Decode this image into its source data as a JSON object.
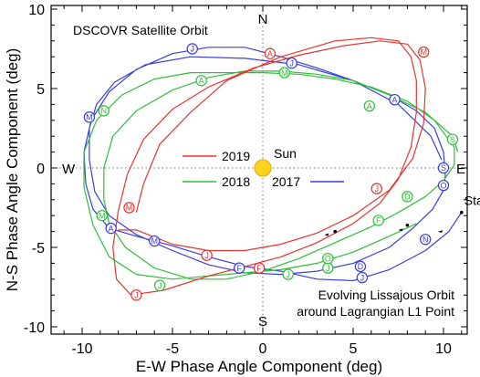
{
  "chart_data": {
    "type": "line",
    "title": "DSCOVR Satellite Orbit",
    "xlabel": "E-W Phase Angle Component (deg)",
    "ylabel": "N-S Phase Angle Component (deg)",
    "xlim": [
      -12,
      12
    ],
    "ylim": [
      -10.3,
      10.3
    ],
    "xticks": [
      -10,
      -5,
      0,
      5,
      10
    ],
    "yticks": [
      -10,
      -5,
      0,
      5,
      10
    ],
    "grid": false,
    "center_lines": "dotted",
    "compass": {
      "north": "N",
      "south": "S",
      "west": "W",
      "east": "E"
    },
    "sun": {
      "label": "Sun",
      "x": 0,
      "y": 0,
      "color": "#ffd21f"
    },
    "annotation_lines": [
      "Evolving Lissajous Orbit",
      "around Lagrangian L1 Point"
    ],
    "start_label": "Start",
    "start_point": {
      "x": 11.0,
      "y": -2.8
    },
    "legend": [
      {
        "name": "2019",
        "color": "#e8342f"
      },
      {
        "name": "2018",
        "color": "#2fbf3a"
      },
      {
        "name": "2017",
        "color": "#3a3fe0"
      }
    ],
    "series": [
      {
        "name": "2017",
        "color": "#3a3fe0",
        "path": [
          [
            11.0,
            -2.8
          ],
          [
            10.3,
            -4.0
          ],
          [
            9.0,
            -5.2
          ],
          [
            7.0,
            -6.4
          ],
          [
            5.0,
            -7.1
          ],
          [
            3.0,
            -7.0
          ],
          [
            1.0,
            -6.5
          ],
          [
            -1.0,
            -6.2
          ],
          [
            -3.0,
            -5.6
          ],
          [
            -5.0,
            -4.9
          ],
          [
            -7.0,
            -4.3
          ],
          [
            -8.5,
            -3.8
          ],
          [
            -9.4,
            -2.6
          ],
          [
            -9.8,
            -1.0
          ],
          [
            -9.9,
            1.0
          ],
          [
            -9.5,
            3.0
          ],
          [
            -8.5,
            4.8
          ],
          [
            -7.0,
            6.2
          ],
          [
            -5.0,
            7.2
          ],
          [
            -3.0,
            7.6
          ],
          [
            -1.0,
            7.6
          ],
          [
            1.0,
            7.0
          ],
          [
            3.0,
            6.3
          ],
          [
            5.0,
            5.5
          ],
          [
            7.0,
            4.6
          ],
          [
            8.5,
            3.6
          ],
          [
            9.5,
            2.5
          ],
          [
            10.0,
            1.0
          ],
          [
            10.1,
            -0.5
          ],
          [
            10.0,
            -1.4
          ],
          [
            9.4,
            -2.6
          ],
          [
            8.3,
            -3.8
          ],
          [
            7.0,
            -5.0
          ],
          [
            5.0,
            -6.0
          ],
          [
            3.0,
            -6.5
          ],
          [
            1.0,
            -6.7
          ],
          [
            -1.0,
            -6.6
          ],
          [
            -3.0,
            -6.1
          ],
          [
            -5.0,
            -5.2
          ],
          [
            -7.0,
            -4.2
          ],
          [
            -8.5,
            -3.0
          ],
          [
            -9.3,
            -1.5
          ],
          [
            -9.6,
            0.5
          ],
          [
            -9.6,
            2.5
          ],
          [
            -9.2,
            4.0
          ],
          [
            -8.2,
            5.4
          ],
          [
            -6.5,
            6.5
          ],
          [
            -4.0,
            7.0
          ],
          [
            -1.0,
            6.9
          ],
          [
            2.0,
            6.5
          ],
          [
            5.0,
            5.5
          ],
          [
            7.5,
            4.0
          ],
          [
            9.3,
            2.0
          ],
          [
            9.9,
            0.5
          ]
        ],
        "markers": [
          {
            "label": "J",
            "x": 5.5,
            "y": -6.9
          },
          {
            "label": "F",
            "x": -1.3,
            "y": -6.3
          },
          {
            "label": "M",
            "x": -6.0,
            "y": -4.6
          },
          {
            "label": "A",
            "x": -8.4,
            "y": -3.8
          },
          {
            "label": "M",
            "x": -9.6,
            "y": 3.2
          },
          {
            "label": "J",
            "x": -3.9,
            "y": 7.5
          },
          {
            "label": "J",
            "x": 1.6,
            "y": 6.6
          },
          {
            "label": "A",
            "x": 7.3,
            "y": 4.3
          },
          {
            "label": "S",
            "x": 10.0,
            "y": 0.0
          },
          {
            "label": "O",
            "x": 10.0,
            "y": -1.1
          },
          {
            "label": "N",
            "x": 9.0,
            "y": -4.5
          },
          {
            "label": "D",
            "x": 5.4,
            "y": -6.2
          }
        ]
      },
      {
        "name": "2018",
        "color": "#2fbf3a",
        "path": [
          [
            8.5,
            -3.5
          ],
          [
            7.0,
            -4.3
          ],
          [
            5.0,
            -5.3
          ],
          [
            3.0,
            -6.0
          ],
          [
            1.0,
            -6.4
          ],
          [
            -1.0,
            -6.6
          ],
          [
            -3.0,
            -6.8
          ],
          [
            -5.0,
            -7.0
          ],
          [
            -7.0,
            -6.7
          ],
          [
            -8.5,
            -5.6
          ],
          [
            -9.4,
            -3.6
          ],
          [
            -9.9,
            -1.2
          ],
          [
            -9.9,
            1.0
          ],
          [
            -9.2,
            3.0
          ],
          [
            -7.8,
            4.6
          ],
          [
            -6.0,
            5.6
          ],
          [
            -4.0,
            6.0
          ],
          [
            -2.0,
            6.0
          ],
          [
            0.0,
            6.0
          ],
          [
            2.0,
            5.9
          ],
          [
            4.0,
            5.6
          ],
          [
            6.0,
            5.1
          ],
          [
            8.0,
            4.2
          ],
          [
            9.5,
            3.0
          ],
          [
            10.6,
            1.3
          ],
          [
            10.6,
            0.2
          ],
          [
            10.0,
            -0.8
          ],
          [
            9.0,
            -1.8
          ],
          [
            7.5,
            -2.8
          ],
          [
            6.0,
            -3.7
          ],
          [
            4.0,
            -4.7
          ],
          [
            2.0,
            -5.7
          ],
          [
            0.0,
            -6.5
          ],
          [
            -2.0,
            -7.0
          ],
          [
            -4.0,
            -7.0
          ],
          [
            -6.0,
            -6.3
          ],
          [
            -7.6,
            -5.0
          ],
          [
            -8.5,
            -3.5
          ],
          [
            -8.8,
            -2.0
          ],
          [
            -8.8,
            0.0
          ],
          [
            -8.3,
            2.0
          ],
          [
            -7.0,
            3.6
          ],
          [
            -5.0,
            4.9
          ],
          [
            -3.0,
            5.7
          ],
          [
            -1.0,
            6.1
          ],
          [
            1.0,
            6.1
          ],
          [
            3.0,
            5.9
          ],
          [
            5.0,
            5.5
          ],
          [
            7.0,
            4.6
          ],
          [
            9.0,
            3.5
          ],
          [
            10.5,
            2.0
          ],
          [
            10.8,
            1.0
          ]
        ],
        "markers": [
          {
            "label": "J",
            "x": 3.6,
            "y": -6.3
          },
          {
            "label": "F",
            "x": 6.4,
            "y": -3.3
          },
          {
            "label": "M",
            "x": 1.2,
            "y": 6.0
          },
          {
            "label": "A",
            "x": -3.4,
            "y": 5.5
          },
          {
            "label": "M",
            "x": -8.9,
            "y": -3.0
          },
          {
            "label": "J",
            "x": -5.7,
            "y": -7.4
          },
          {
            "label": "J",
            "x": 1.4,
            "y": -6.7
          },
          {
            "label": "A",
            "x": 5.9,
            "y": 3.9
          },
          {
            "label": "S",
            "x": 10.5,
            "y": 1.8
          },
          {
            "label": "O",
            "x": 3.6,
            "y": -5.7
          },
          {
            "label": "N",
            "x": -8.8,
            "y": 3.6
          },
          {
            "label": "D",
            "x": 8.0,
            "y": -1.8
          }
        ]
      },
      {
        "name": "2019",
        "color": "#e8342f",
        "path": [
          [
            -8.0,
            -3.9
          ],
          [
            -7.0,
            -3.9
          ],
          [
            -5.0,
            -4.8
          ],
          [
            -3.0,
            -5.2
          ],
          [
            -1.0,
            -5.2
          ],
          [
            1.0,
            -4.8
          ],
          [
            3.0,
            -4.1
          ],
          [
            5.0,
            -3.0
          ],
          [
            7.0,
            -1.4
          ],
          [
            8.3,
            0.6
          ],
          [
            8.9,
            2.8
          ],
          [
            9.0,
            5.0
          ],
          [
            8.7,
            6.8
          ],
          [
            8.0,
            7.8
          ],
          [
            6.5,
            8.0
          ],
          [
            4.5,
            7.7
          ],
          [
            2.0,
            7.1
          ],
          [
            -0.5,
            6.3
          ],
          [
            -3.0,
            5.1
          ],
          [
            -5.0,
            3.7
          ],
          [
            -6.6,
            1.8
          ],
          [
            -7.5,
            -0.4
          ],
          [
            -8.0,
            -2.7
          ],
          [
            -8.3,
            -5.0
          ],
          [
            -8.1,
            -7.0
          ],
          [
            -7.3,
            -8.0
          ],
          [
            -5.5,
            -7.7
          ],
          [
            -3.0,
            -6.8
          ],
          [
            -1.0,
            -6.2
          ],
          [
            1.0,
            -5.6
          ],
          [
            3.0,
            -4.7
          ],
          [
            5.0,
            -3.5
          ],
          [
            6.5,
            -2.2
          ],
          [
            7.5,
            -0.7
          ],
          [
            8.2,
            1.3
          ],
          [
            8.5,
            3.5
          ],
          [
            8.5,
            5.5
          ],
          [
            8.2,
            7.0
          ],
          [
            7.5,
            8.0
          ],
          [
            6.0,
            8.2
          ],
          [
            4.0,
            8.0
          ],
          [
            1.0,
            7.0
          ],
          [
            -2.0,
            5.5
          ],
          [
            -4.0,
            3.5
          ],
          [
            -5.7,
            1.5
          ],
          [
            -6.6,
            -1.0
          ],
          [
            -7.0,
            -2.8
          ]
        ],
        "markers": [
          {
            "label": "J",
            "x": -3.1,
            "y": -5.5
          },
          {
            "label": "F",
            "x": -0.2,
            "y": -6.3
          },
          {
            "label": "M",
            "x": -7.4,
            "y": -2.5
          },
          {
            "label": "A",
            "x": 0.4,
            "y": 7.2
          },
          {
            "label": "M",
            "x": 8.9,
            "y": 7.3
          },
          {
            "label": "J",
            "x": 6.3,
            "y": -1.3
          },
          {
            "label": "J",
            "x": -7.0,
            "y": -8.0
          }
        ]
      }
    ]
  },
  "axes_labels": {
    "xlabel": "E-W Phase Angle Component (deg)",
    "ylabel": "N-S Phase Angle Component (deg)"
  }
}
